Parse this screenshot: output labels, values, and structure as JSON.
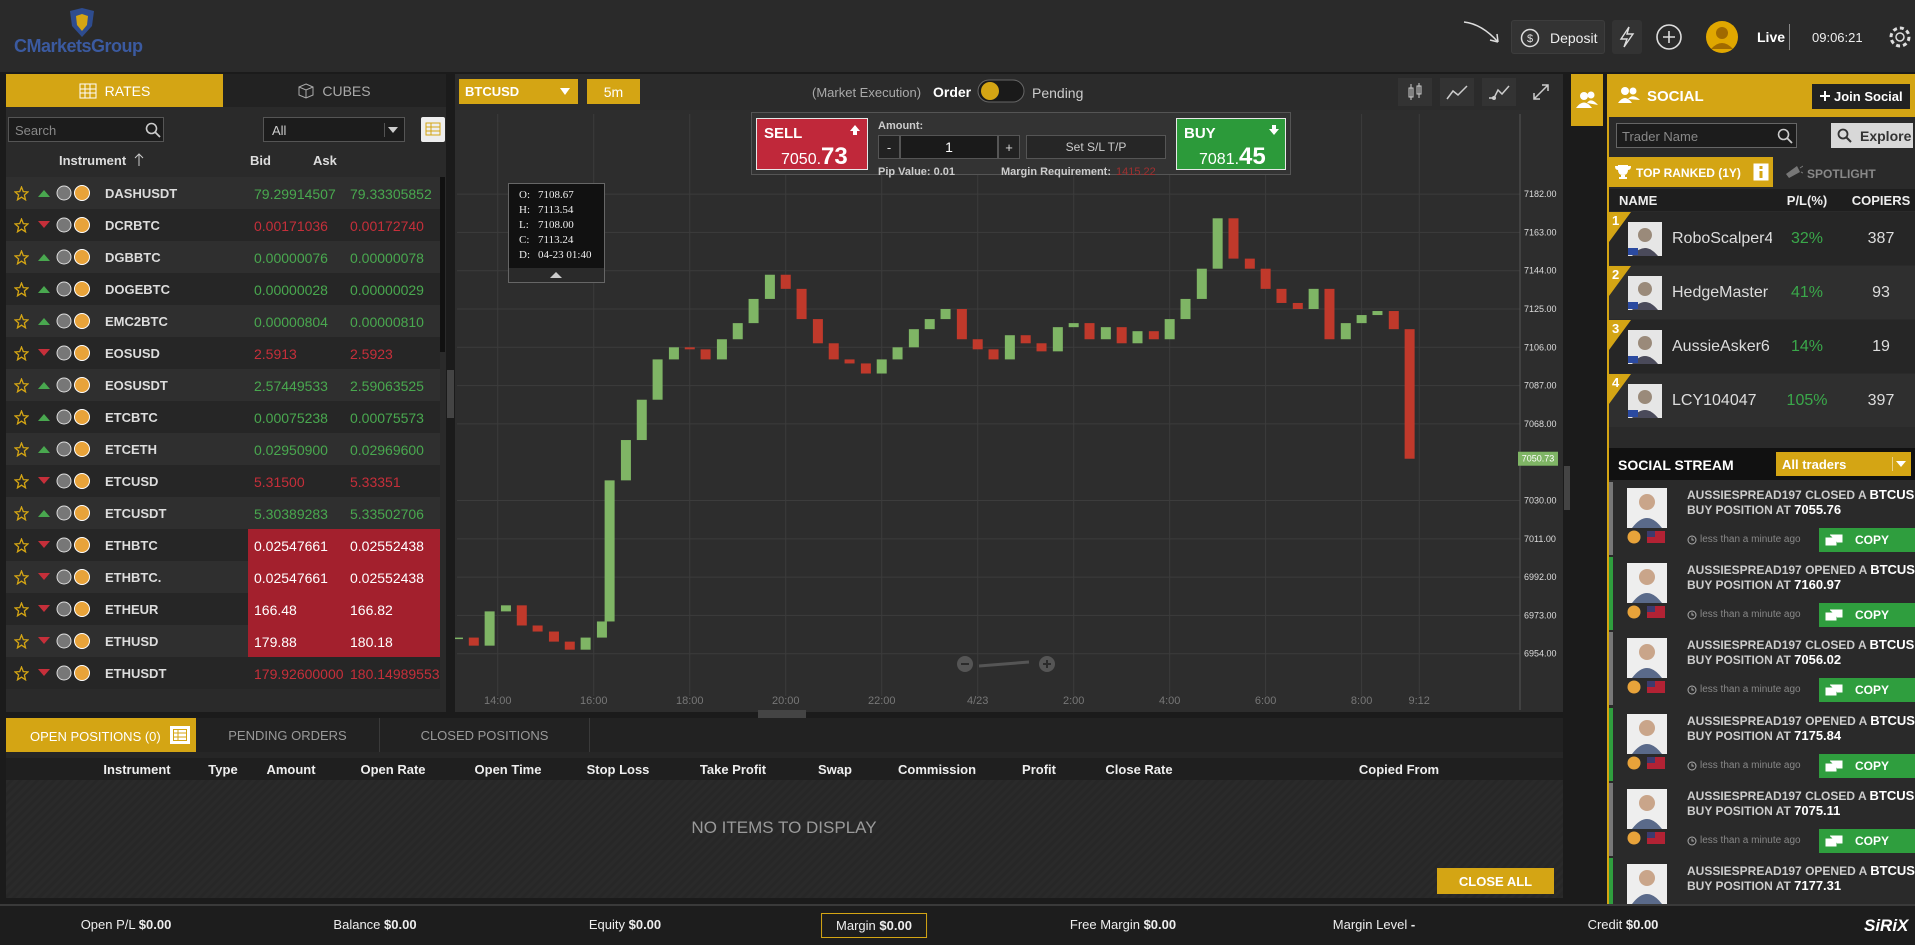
{
  "header": {
    "logo": "CMarketsGroup",
    "deposit": "Deposit",
    "mode": "Live",
    "clock": "09:06:21"
  },
  "rates_panel": {
    "tabs": [
      "RATES",
      "CUBES"
    ],
    "search_placeholder": "Search",
    "filter": "All",
    "columns": [
      "Instrument",
      "Bid",
      "Ask"
    ],
    "up_color": "#49a84f",
    "down_color": "#c62f3a",
    "highlight_color": "#a3202d",
    "rows": [
      {
        "symbol": "DASHUSDT",
        "trend": "up",
        "bid": "79.29914507",
        "ask": "79.33305852",
        "highlight": false
      },
      {
        "symbol": "DCRBTC",
        "trend": "down",
        "bid": "0.00171036",
        "ask": "0.00172740",
        "highlight": false
      },
      {
        "symbol": "DGBBTC",
        "trend": "up",
        "bid": "0.00000076",
        "ask": "0.00000078",
        "highlight": false
      },
      {
        "symbol": "DOGEBTC",
        "trend": "up",
        "bid": "0.00000028",
        "ask": "0.00000029",
        "highlight": false
      },
      {
        "symbol": "EMC2BTC",
        "trend": "up",
        "bid": "0.00000804",
        "ask": "0.00000810",
        "highlight": false
      },
      {
        "symbol": "EOSUSD",
        "trend": "down",
        "bid": "2.5913",
        "ask": "2.5923",
        "highlight": false
      },
      {
        "symbol": "EOSUSDT",
        "trend": "up",
        "bid": "2.57449533",
        "ask": "2.59063525",
        "highlight": false
      },
      {
        "symbol": "ETCBTC",
        "trend": "up",
        "bid": "0.00075238",
        "ask": "0.00075573",
        "highlight": false
      },
      {
        "symbol": "ETCETH",
        "trend": "up",
        "bid": "0.02950900",
        "ask": "0.02969600",
        "highlight": false
      },
      {
        "symbol": "ETCUSD",
        "trend": "down",
        "bid": "5.31500",
        "ask": "5.33351",
        "highlight": false
      },
      {
        "symbol": "ETCUSDT",
        "trend": "up",
        "bid": "5.30389283",
        "ask": "5.33502706",
        "highlight": false
      },
      {
        "symbol": "ETHBTC",
        "trend": "down",
        "bid": "0.02547661",
        "ask": "0.02552438",
        "highlight": true
      },
      {
        "symbol": "ETHBTC.",
        "trend": "down",
        "bid": "0.02547661",
        "ask": "0.02552438",
        "highlight": true
      },
      {
        "symbol": "ETHEUR",
        "trend": "down",
        "bid": "166.48",
        "ask": "166.82",
        "highlight": true
      },
      {
        "symbol": "ETHUSD",
        "trend": "down",
        "bid": "179.88",
        "ask": "180.18",
        "highlight": true
      },
      {
        "symbol": "ETHUSDT",
        "trend": "down",
        "bid": "179.92600000",
        "ask": "180.14989553",
        "highlight": false
      }
    ]
  },
  "toolbar": {
    "symbol": "BTCUSD",
    "timeframe": "5m",
    "execution": "(Market Execution)",
    "order": "Order",
    "pending": "Pending"
  },
  "trade_box": {
    "sell_label": "SELL",
    "sell_price_main": "7050.",
    "sell_price_pips": "73",
    "amount_label": "Amount:",
    "amount_minus": "-",
    "amount": "1",
    "amount_plus": "+",
    "sltp": "Set S/L T/P",
    "pip_value": "Pip Value: 0.01",
    "margin_label": "Margin Requirement:",
    "margin_value": "1415.22",
    "buy_label": "BUY",
    "buy_price_main": "7081.",
    "buy_price_pips": "45"
  },
  "tooltip": {
    "rows": [
      {
        "key": "O:",
        "value": "7108.67"
      },
      {
        "key": "H:",
        "value": "7113.54"
      },
      {
        "key": "L:",
        "value": "7108.00"
      },
      {
        "key": "C:",
        "value": "7113.24"
      },
      {
        "key": "D:",
        "value": "04-23 01:40"
      }
    ]
  },
  "chart_data": {
    "type": "candlestick",
    "up_color": "#7fb565",
    "down_color": "#c0392b",
    "grid": true,
    "x": [
      13.17,
      13.5,
      13.83,
      14.17,
      14.5,
      14.83,
      15.17,
      15.5,
      15.83,
      16.17,
      16.33,
      16.67,
      17.0,
      17.33,
      17.67,
      18.0,
      18.33,
      18.67,
      19.0,
      19.33,
      19.67,
      20.0,
      20.33,
      20.67,
      21.0,
      21.33,
      21.67,
      22.0,
      22.33,
      22.67,
      23.0,
      23.33,
      23.67,
      24.0,
      24.33,
      24.67,
      25.0,
      25.33,
      25.67,
      26.0,
      26.33,
      26.67,
      27.0,
      27.33,
      27.67,
      28.0,
      28.33,
      28.67,
      29.0,
      29.33,
      29.67,
      30.0,
      30.33,
      30.67,
      31.0,
      31.33,
      31.67,
      32.0,
      32.33,
      32.67,
      33.0
    ],
    "values": [
      6962,
      6958,
      6975,
      6978,
      6968,
      6965,
      6960,
      6956,
      6962,
      6970,
      7040,
      7060,
      7080,
      7100,
      7106,
      7105,
      7100,
      7110,
      7118,
      7130,
      7142,
      7135,
      7120,
      7108,
      7100,
      7098,
      7093,
      7100,
      7106,
      7115,
      7120,
      7125,
      7110,
      7105,
      7100,
      7112,
      7108,
      7104,
      7116,
      7118,
      7110,
      7116,
      7108,
      7114,
      7110,
      7120,
      7130,
      7145,
      7170,
      7150,
      7145,
      7135,
      7128,
      7125,
      7135,
      7110,
      7118,
      7122,
      7124,
      7115,
      7050.73
    ],
    "price_label": 7050.73,
    "xlim": [
      13.15,
      35.3
    ],
    "ylim": [
      6936,
      7189
    ],
    "xticks": [
      {
        "value": 14,
        "label": "14:00"
      },
      {
        "value": 16,
        "label": "16:00"
      },
      {
        "value": 18,
        "label": "18:00"
      },
      {
        "value": 20,
        "label": "20:00"
      },
      {
        "value": 22,
        "label": "22:00"
      },
      {
        "value": 24,
        "label": "4/23"
      },
      {
        "value": 26,
        "label": "2:00"
      },
      {
        "value": 28,
        "label": "4:00"
      },
      {
        "value": 30,
        "label": "6:00"
      },
      {
        "value": 32,
        "label": "8:00"
      },
      {
        "value": 33.2,
        "label": "9:12"
      }
    ],
    "yticks": [
      {
        "value": 7182,
        "label": "7182.00"
      },
      {
        "value": 7163,
        "label": "7163.00"
      },
      {
        "value": 7144,
        "label": "7144.00"
      },
      {
        "value": 7125,
        "label": "7125.00"
      },
      {
        "value": 7106,
        "label": "7106.00"
      },
      {
        "value": 7087,
        "label": "7087.00"
      },
      {
        "value": 7068,
        "label": "7068.00"
      },
      {
        "value": 7030,
        "label": "7030.00"
      },
      {
        "value": 7011,
        "label": "7011.00"
      },
      {
        "value": 6992,
        "label": "6992.00"
      },
      {
        "value": 6973,
        "label": "6973.00"
      },
      {
        "value": 6954,
        "label": "6954.00"
      }
    ]
  },
  "positions": {
    "tabs": [
      "OPEN POSITIONS (0)",
      "PENDING ORDERS",
      "CLOSED POSITIONS"
    ],
    "columns": [
      "Instrument",
      "Type",
      "Amount",
      "Open Rate",
      "Open Time",
      "Stop Loss",
      "Take Profit",
      "Swap",
      "Commission",
      "Profit",
      "Close Rate",
      "Copied From"
    ],
    "empty": "NO ITEMS TO DISPLAY",
    "close_all": "CLOSE ALL"
  },
  "footer": {
    "items": [
      {
        "label": "Open P/L",
        "value": "$0.00"
      },
      {
        "label": "Balance",
        "value": "$0.00"
      },
      {
        "label": "Equity",
        "value": "$0.00"
      },
      {
        "label": "Margin",
        "value": "$0.00"
      },
      {
        "label": "Free Margin",
        "value": "$0.00"
      },
      {
        "label": "Margin Level",
        "value": "-"
      },
      {
        "label": "Credit",
        "value": "$0.00"
      }
    ],
    "brand": "SiRiX"
  },
  "social": {
    "title": "SOCIAL",
    "join": "Join Social",
    "search_placeholder": "Trader Name",
    "explore": "Explore",
    "tabs": [
      "TOP RANKED (1Y)",
      "SPOTLIGHT"
    ],
    "columns": [
      "NAME",
      "P/L(%)",
      "COPIERS"
    ],
    "traders": [
      {
        "rank": "1",
        "name": "RoboScalper4",
        "pl": "32%",
        "copiers": "387"
      },
      {
        "rank": "2",
        "name": "HedgeMaster",
        "pl": "41%",
        "copiers": "93"
      },
      {
        "rank": "3",
        "name": "AussieAsker6",
        "pl": "14%",
        "copiers": "19"
      },
      {
        "rank": "4",
        "name": "LCY104047",
        "pl": "105%",
        "copiers": "397"
      }
    ],
    "stream_title": "SOCIAL STREAM",
    "stream_filter": "All traders",
    "stream": [
      {
        "user": "AUSSIESPREAD197",
        "action": "CLOSED A",
        "symbol": "BTCUSD",
        "side": "BUY POSITION AT",
        "price": "7055.76",
        "time": "less than a minute ago",
        "button": "COPY",
        "accent": "#777777"
      },
      {
        "user": "AUSSIESPREAD197",
        "action": "OPENED A",
        "symbol": "BTCUSD",
        "side": "BUY POSITION AT",
        "price": "7160.97",
        "time": "less than a minute ago",
        "button": "COPY",
        "accent": "#2f9e3e"
      },
      {
        "user": "AUSSIESPREAD197",
        "action": "CLOSED A",
        "symbol": "BTCUSD",
        "side": "BUY POSITION AT",
        "price": "7056.02",
        "time": "less than a minute ago",
        "button": "COPY",
        "accent": "#777777"
      },
      {
        "user": "AUSSIESPREAD197",
        "action": "OPENED A",
        "symbol": "BTCUSD",
        "side": "BUY POSITION AT",
        "price": "7175.84",
        "time": "less than a minute ago",
        "button": "COPY",
        "accent": "#2f9e3e"
      },
      {
        "user": "AUSSIESPREAD197",
        "action": "CLOSED A",
        "symbol": "BTCUSD",
        "side": "BUY POSITION AT",
        "price": "7075.11",
        "time": "less than a minute ago",
        "button": "COPY",
        "accent": "#777777"
      },
      {
        "user": "AUSSIESPREAD197",
        "action": "OPENED A",
        "symbol": "BTCUSD",
        "side": "BUY POSITION AT",
        "price": "7177.31",
        "time": "less than a minute ago",
        "button": "COPY",
        "accent": "#2f9e3e"
      }
    ]
  }
}
